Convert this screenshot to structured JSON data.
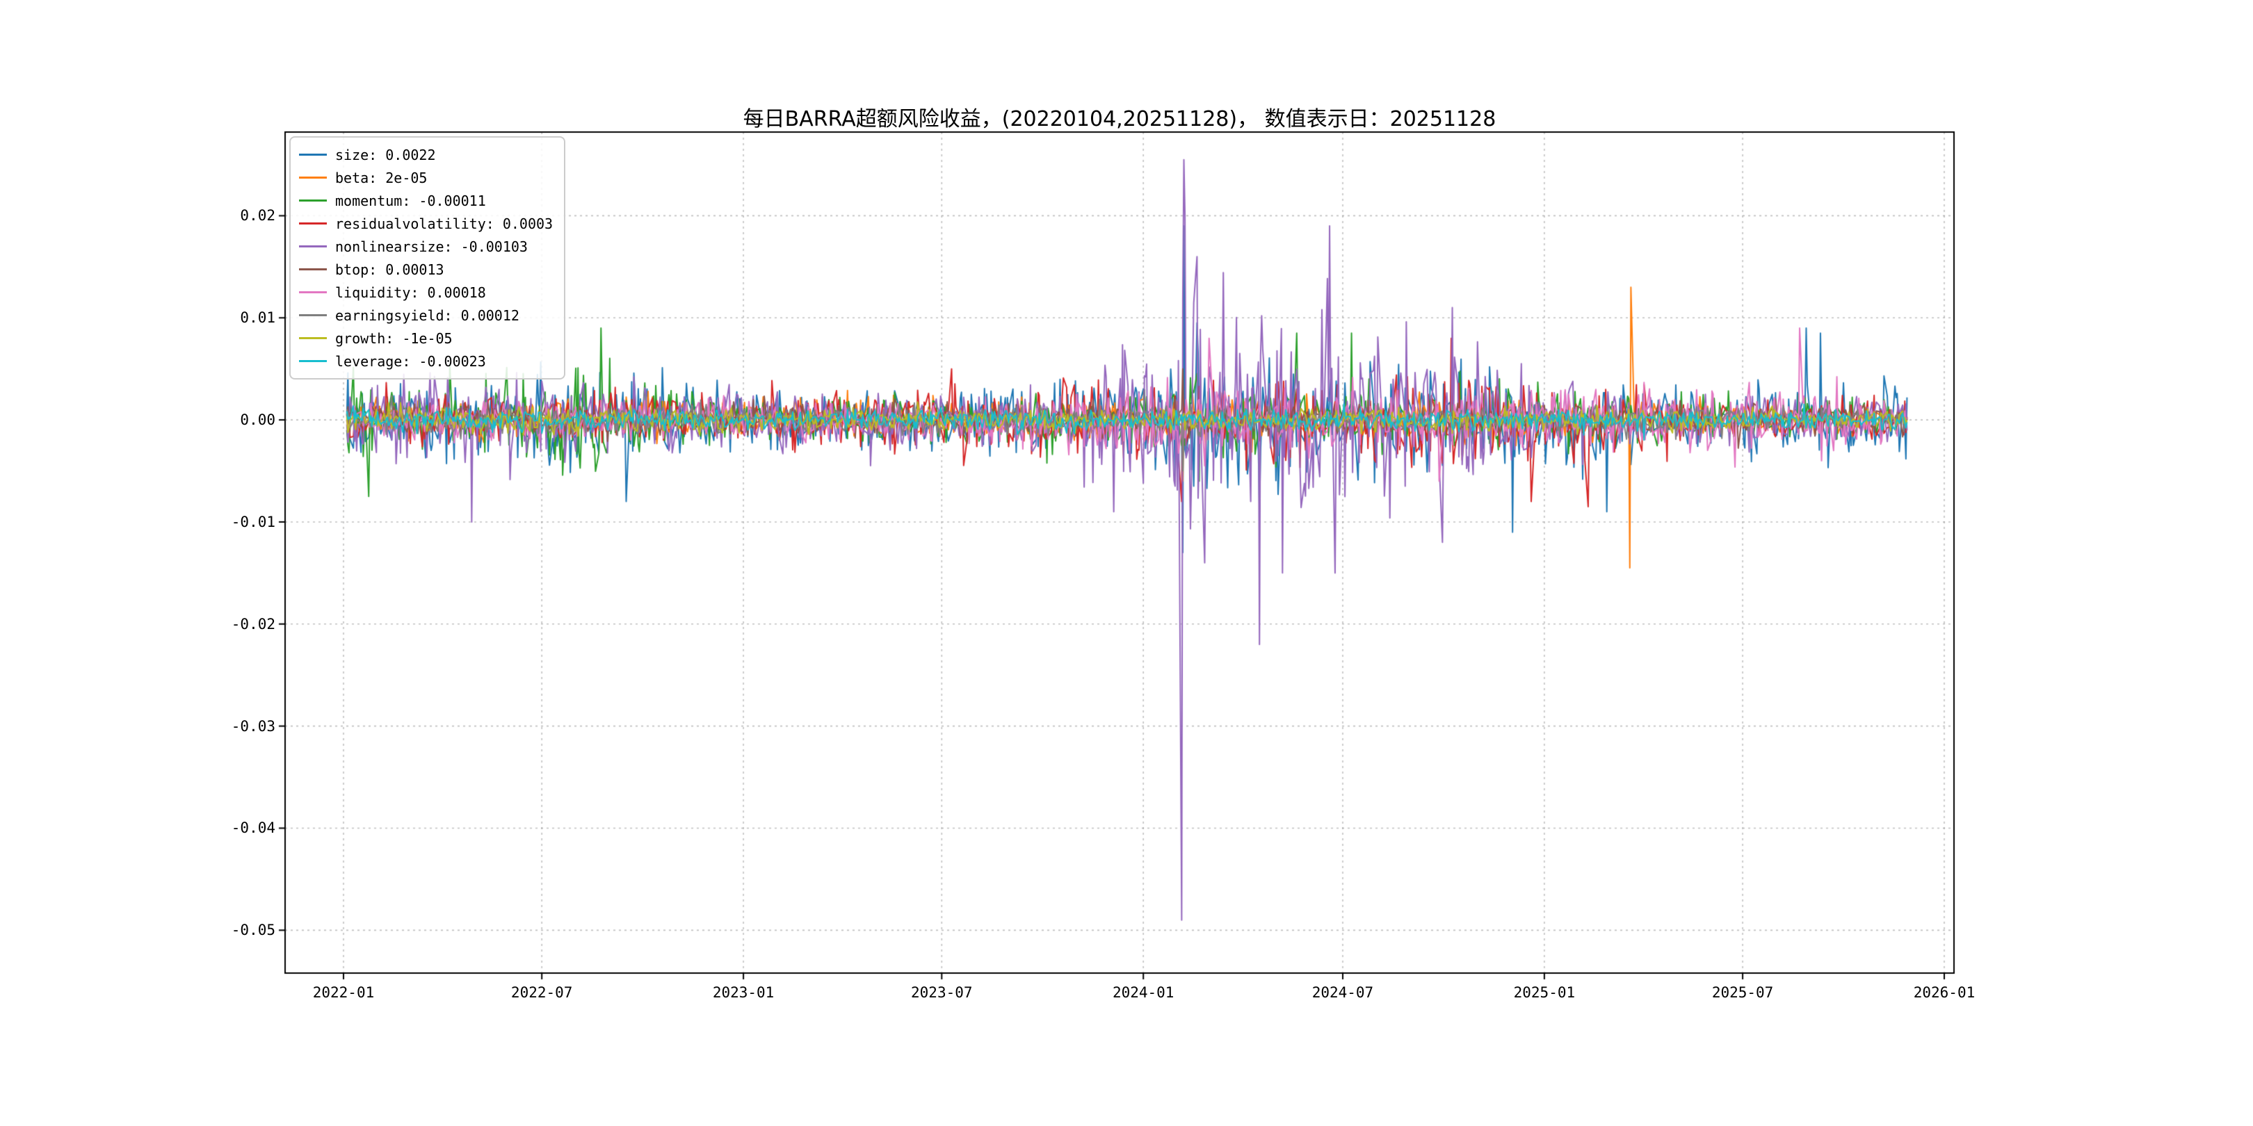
{
  "chart_data": {
    "type": "line",
    "title": "每日BARRA超额风险收益，(20220104,20251128)，  数值表示日：20251128",
    "value_date": "20251128",
    "date_range": [
      "20220104",
      "20251128"
    ],
    "start_date": "2022-01-04",
    "end_date": "2025-11-28",
    "grid": true,
    "legend_position": "upper-left",
    "x_ticks": [
      "2022-01",
      "2022-07",
      "2023-01",
      "2023-07",
      "2024-01",
      "2024-07",
      "2025-01",
      "2025-07",
      "2026-01"
    ],
    "y_ticks": [
      0.02,
      0.01,
      0.0,
      -0.01,
      -0.02,
      -0.03,
      -0.04,
      -0.05
    ],
    "y_tick_labels": [
      "0.02",
      "0.01",
      "0.00",
      "-0.01",
      "-0.02",
      "-0.03",
      "-0.04",
      "-0.05"
    ],
    "ylim": [
      -0.0542,
      0.0282
    ],
    "xlim": [
      "2021-11-09",
      "2026-01-10"
    ],
    "series": [
      {
        "name": "size",
        "color": "#1f77b4",
        "legend_label": "size: 0.0022",
        "final_value": 0.0022,
        "noise_amp_keyframes": [
          [
            "2022-01",
            0.0022
          ],
          [
            "2022-04",
            0.0018
          ],
          [
            "2022-08",
            0.0028
          ],
          [
            "2022-11",
            0.0018
          ],
          [
            "2023-05",
            0.0016
          ],
          [
            "2023-10",
            0.002
          ],
          [
            "2024-01",
            0.0032
          ],
          [
            "2024-02",
            0.0042
          ],
          [
            "2024-05",
            0.0034
          ],
          [
            "2024-09",
            0.0028
          ],
          [
            "2024-12",
            0.003
          ],
          [
            "2025-03",
            0.0022
          ],
          [
            "2025-07",
            0.0018
          ],
          [
            "2025-09",
            0.0024
          ],
          [
            "2025-11",
            0.0022
          ]
        ],
        "spikes": [
          [
            "2022-09-16",
            -0.008
          ],
          [
            "2024-02-06",
            -0.013
          ],
          [
            "2024-02-07",
            0.019
          ],
          [
            "2024-02-19",
            0.0095
          ],
          [
            "2024-04-16",
            -0.009
          ],
          [
            "2024-12-03",
            -0.011
          ],
          [
            "2025-02-27",
            -0.009
          ],
          [
            "2025-08-28",
            0.009
          ],
          [
            "2025-09-10",
            0.0085
          ]
        ]
      },
      {
        "name": "beta",
        "color": "#ff7f0e",
        "legend_label": "beta: 2e-05",
        "final_value": 2e-05,
        "noise_amp_keyframes": [
          [
            "2022-01",
            0.001
          ],
          [
            "2024-02",
            0.0014
          ],
          [
            "2025-11",
            0.0008
          ]
        ],
        "spikes": [
          [
            "2024-02-06",
            -0.006
          ],
          [
            "2025-03-20",
            -0.0145
          ],
          [
            "2025-03-21",
            0.013
          ]
        ]
      },
      {
        "name": "momentum",
        "color": "#2ca02c",
        "legend_label": "momentum: -0.00011",
        "final_value": -0.00011,
        "noise_amp_keyframes": [
          [
            "2022-01",
            0.0026
          ],
          [
            "2022-04",
            0.0018
          ],
          [
            "2022-08",
            0.0028
          ],
          [
            "2023-01",
            0.0014
          ],
          [
            "2023-12",
            0.0014
          ],
          [
            "2024-03",
            0.0024
          ],
          [
            "2024-08",
            0.0018
          ],
          [
            "2025-11",
            0.0012
          ]
        ],
        "spikes": [
          [
            "2022-01-24",
            -0.0075
          ],
          [
            "2022-08-24",
            0.009
          ],
          [
            "2024-02-21",
            -0.006
          ],
          [
            "2024-05-20",
            0.0085
          ],
          [
            "2024-07-09",
            0.0085
          ]
        ]
      },
      {
        "name": "residualvolatility",
        "color": "#d62728",
        "legend_label": "residualvolatility: 0.0003",
        "final_value": 0.0003,
        "noise_amp_keyframes": [
          [
            "2022-01",
            0.0013
          ],
          [
            "2023-06",
            0.0015
          ],
          [
            "2024-02",
            0.002
          ],
          [
            "2024-10",
            0.0024
          ],
          [
            "2025-02",
            0.0022
          ],
          [
            "2025-06",
            0.0012
          ],
          [
            "2025-11",
            0.001
          ]
        ],
        "spikes": [
          [
            "2023-07-10",
            0.005
          ],
          [
            "2024-02-05",
            -0.008
          ],
          [
            "2024-10-08",
            0.008
          ],
          [
            "2024-12-20",
            -0.008
          ],
          [
            "2025-02-10",
            -0.0085
          ]
        ]
      },
      {
        "name": "nonlinearsize",
        "color": "#9467bd",
        "legend_label": "nonlinearsize: -0.00103",
        "final_value": -0.00103,
        "noise_amp_keyframes": [
          [
            "2022-01",
            0.002
          ],
          [
            "2022-05",
            0.0026
          ],
          [
            "2022-09",
            0.0018
          ],
          [
            "2023-08",
            0.0014
          ],
          [
            "2023-11",
            0.0024
          ],
          [
            "2024-01",
            0.0055
          ],
          [
            "2024-02",
            0.0075
          ],
          [
            "2024-04",
            0.006
          ],
          [
            "2024-06",
            0.0055
          ],
          [
            "2024-08",
            0.0045
          ],
          [
            "2024-10",
            0.0035
          ],
          [
            "2024-12",
            0.0024
          ],
          [
            "2025-03",
            0.0015
          ],
          [
            "2025-11",
            0.0012
          ]
        ],
        "spikes": [
          [
            "2022-04-28",
            -0.01
          ],
          [
            "2023-12-05",
            -0.009
          ],
          [
            "2024-02-05",
            -0.049
          ],
          [
            "2024-02-07",
            0.0255
          ],
          [
            "2024-02-08",
            0.02
          ],
          [
            "2024-02-19",
            0.016
          ],
          [
            "2024-02-26",
            -0.014
          ],
          [
            "2024-04-16",
            -0.022
          ],
          [
            "2024-05-07",
            -0.015
          ],
          [
            "2024-06-19",
            0.019
          ],
          [
            "2024-06-24",
            -0.015
          ],
          [
            "2024-09-30",
            -0.012
          ],
          [
            "2024-10-09",
            0.011
          ]
        ]
      },
      {
        "name": "btop",
        "color": "#8c564b",
        "legend_label": "btop: 0.00013",
        "final_value": 0.00013,
        "noise_amp_keyframes": [
          [
            "2022-01",
            0.0009
          ],
          [
            "2025-11",
            0.0008
          ]
        ],
        "spikes": [
          [
            "2024-02-06",
            0.005
          ]
        ]
      },
      {
        "name": "liquidity",
        "color": "#e377c2",
        "legend_label": "liquidity: 0.00018",
        "final_value": 0.00018,
        "noise_amp_keyframes": [
          [
            "2022-01",
            0.001
          ],
          [
            "2023-06",
            0.0012
          ],
          [
            "2024-02",
            0.0018
          ],
          [
            "2024-07",
            0.0015
          ],
          [
            "2025-05",
            0.0018
          ],
          [
            "2025-08",
            0.002
          ],
          [
            "2025-11",
            0.0014
          ]
        ],
        "spikes": [
          [
            "2024-03-01",
            0.008
          ],
          [
            "2024-09-27",
            -0.006
          ],
          [
            "2025-08-22",
            0.009
          ]
        ]
      },
      {
        "name": "earningsyield",
        "color": "#7f7f7f",
        "legend_label": "earningsyield: 0.00012",
        "final_value": 0.00012,
        "noise_amp_keyframes": [
          [
            "2022-01",
            0.0008
          ],
          [
            "2025-11",
            0.0007
          ]
        ],
        "spikes": [
          [
            "2024-02-06",
            -0.005
          ]
        ]
      },
      {
        "name": "growth",
        "color": "#bcbd22",
        "legend_label": "growth: -1e-05",
        "final_value": -1e-05,
        "noise_amp_keyframes": [
          [
            "2022-01",
            0.0007
          ],
          [
            "2025-11",
            0.0006
          ]
        ],
        "spikes": []
      },
      {
        "name": "leverage",
        "color": "#17becf",
        "legend_label": "leverage: -0.00023",
        "final_value": -0.00023,
        "noise_amp_keyframes": [
          [
            "2022-01",
            0.0006
          ],
          [
            "2025-11",
            0.0006
          ]
        ],
        "spikes": []
      }
    ]
  }
}
